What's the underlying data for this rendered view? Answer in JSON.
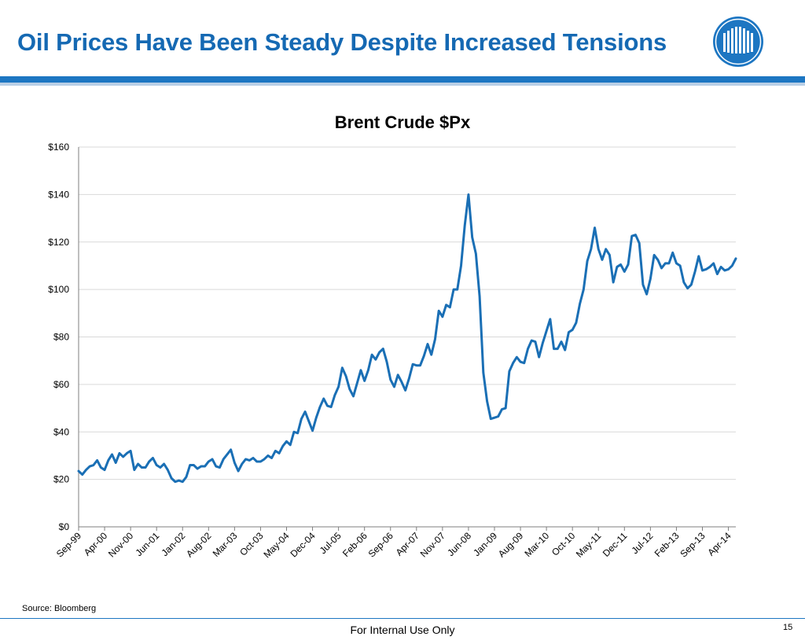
{
  "slide": {
    "title": "Oil Prices Have Been Steady Despite Increased Tensions",
    "source": "Source:  Bloomberg",
    "footer": "For Internal Use Only",
    "page_number": "15",
    "logo_icon": "company-logo-icon"
  },
  "colors": {
    "accent": "#1569b3",
    "bar": "#1d76c2",
    "line": "#1a6fb5"
  },
  "chart_data": {
    "type": "line",
    "title": "Brent Crude $Px",
    "xlabel": "",
    "ylabel": "",
    "ylim": [
      0,
      160
    ],
    "y_ticks": [
      0,
      20,
      40,
      60,
      80,
      100,
      120,
      140,
      160
    ],
    "y_tick_labels": [
      "$0",
      "$20",
      "$40",
      "$60",
      "$80",
      "$100",
      "$120",
      "$140",
      "$160"
    ],
    "x_tick_labels": [
      "Sep-99",
      "Apr-00",
      "Nov-00",
      "Jun-01",
      "Jan-02",
      "Aug-02",
      "Mar-03",
      "Oct-03",
      "May-04",
      "Dec-04",
      "Jul-05",
      "Feb-06",
      "Sep-06",
      "Apr-07",
      "Nov-07",
      "Jun-08",
      "Jan-09",
      "Aug-09",
      "Mar-10",
      "Oct-10",
      "May-11",
      "Dec-11",
      "Jul-12",
      "Feb-13",
      "Sep-13",
      "Apr-14"
    ],
    "x_start": "Sep-99",
    "frequency": "monthly",
    "grid": "horizontal",
    "series": [
      {
        "values": [
          23.5,
          22,
          24,
          25.5,
          26,
          28,
          25,
          24,
          28,
          30.5,
          27,
          31,
          29.5,
          31,
          32,
          24,
          26.5,
          25,
          25,
          27.5,
          29,
          26,
          25,
          26.5,
          24,
          20.5,
          19,
          19.5,
          19,
          21,
          26,
          26,
          24.5,
          25.5,
          25.5,
          27.5,
          28.5,
          25.5,
          25,
          28.5,
          30.5,
          32.5,
          27,
          23.5,
          26.5,
          28.5,
          28,
          29,
          27.5,
          27.5,
          28.5,
          30,
          29,
          32,
          31,
          34,
          36,
          34.5,
          40,
          39.5,
          45.5,
          48.5,
          44.5,
          40.5,
          46,
          50.5,
          54,
          51,
          50.5,
          55.5,
          59,
          67,
          63.5,
          58,
          55,
          60.5,
          66,
          61.5,
          66,
          72.5,
          70.5,
          73.5,
          75,
          69.5,
          62,
          59,
          64,
          61,
          57.5,
          62.5,
          68.5,
          68,
          68,
          72,
          77,
          72.5,
          79,
          91,
          88.5,
          93.5,
          92.5,
          100,
          100,
          110,
          127,
          140,
          122,
          115,
          97,
          65,
          53,
          45.5,
          46,
          46.5,
          49.5,
          50,
          65.5,
          69,
          71.5,
          69.5,
          69,
          75,
          78.5,
          78,
          71.5,
          77.5,
          82.5,
          87.5,
          75,
          75,
          78,
          74.5,
          82,
          83,
          86,
          94,
          100,
          112,
          117,
          126,
          117,
          112.5,
          117,
          114.5,
          103,
          109.5,
          110.5,
          107.5,
          110.5,
          122.5,
          123,
          119.5,
          102,
          98,
          104.5,
          114.5,
          112.5,
          109,
          111,
          111,
          115.5,
          111,
          110,
          103,
          100.5,
          102,
          107.5,
          114,
          108,
          108.5,
          109.5,
          111,
          106.5,
          109.5,
          108,
          108.5,
          110,
          113
        ]
      }
    ]
  }
}
